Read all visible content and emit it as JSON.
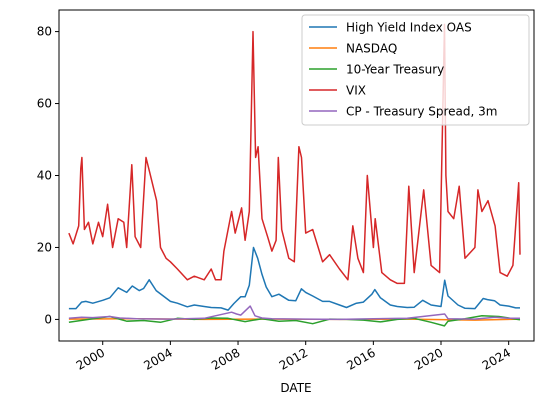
{
  "chart_data": {
    "type": "line",
    "xlabel": "DATE",
    "ylabel": "",
    "xlim": [
      "1997-06-01",
      "2025-07-01"
    ],
    "ylim": [
      -6,
      86
    ],
    "grid": false,
    "legend_placement": "top-right",
    "x_ticks": [
      "2000",
      "2004",
      "2008",
      "2012",
      "2016",
      "2020",
      "2024"
    ],
    "y_ticks": [
      0,
      20,
      40,
      60,
      80
    ],
    "series": [
      {
        "name": "High Yield Index OAS",
        "color": "#1f77b4",
        "x": [
          "1998-01-01",
          "1998-06-01",
          "1998-10-01",
          "1999-01-01",
          "1999-06-01",
          "2000-01-01",
          "2000-06-01",
          "2000-12-01",
          "2001-06-01",
          "2001-10-01",
          "2002-03-01",
          "2002-06-01",
          "2002-10-01",
          "2003-03-01",
          "2003-08-01",
          "2004-01-01",
          "2004-06-01",
          "2005-01-01",
          "2005-06-01",
          "2006-01-01",
          "2006-06-01",
          "2007-01-01",
          "2007-06-01",
          "2007-10-01",
          "2008-03-01",
          "2008-06-01",
          "2008-09-01",
          "2008-12-01",
          "2009-03-01",
          "2009-06-01",
          "2009-09-01",
          "2010-01-01",
          "2010-06-01",
          "2011-01-01",
          "2011-06-01",
          "2011-10-01",
          "2012-01-01",
          "2012-06-01",
          "2013-01-01",
          "2013-06-01",
          "2014-01-01",
          "2014-06-01",
          "2015-01-01",
          "2015-06-01",
          "2015-12-01",
          "2016-02-01",
          "2016-06-01",
          "2017-01-01",
          "2017-06-01",
          "2018-01-01",
          "2018-06-01",
          "2018-12-01",
          "2019-06-01",
          "2020-01-01",
          "2020-03-20",
          "2020-06-01",
          "2021-01-01",
          "2021-06-01",
          "2022-01-01",
          "2022-07-01",
          "2022-10-01",
          "2023-03-01",
          "2023-07-01",
          "2024-01-01",
          "2024-06-01",
          "2024-09-01"
        ],
        "values": [
          3.0,
          3.0,
          4.8,
          5.0,
          4.5,
          5.3,
          6.0,
          8.8,
          7.5,
          9.3,
          8.0,
          8.6,
          11.0,
          8.0,
          6.5,
          5.0,
          4.5,
          3.5,
          4.0,
          3.6,
          3.3,
          3.2,
          2.6,
          4.4,
          6.3,
          6.3,
          9.5,
          20.0,
          17.0,
          12.5,
          9.0,
          6.3,
          7.0,
          5.3,
          5.2,
          8.5,
          7.5,
          6.5,
          5.0,
          5.0,
          4.0,
          3.3,
          4.5,
          4.8,
          7.0,
          8.3,
          6.0,
          4.0,
          3.6,
          3.3,
          3.4,
          5.3,
          4.0,
          3.6,
          10.9,
          6.5,
          4.0,
          3.1,
          3.0,
          5.8,
          5.5,
          5.2,
          4.0,
          3.7,
          3.2,
          3.2
        ]
      },
      {
        "name": "NASDAQ",
        "color": "#ff7f0e",
        "x": [
          "1998-01-01",
          "2002-01-01",
          "2006-01-01",
          "2010-01-01",
          "2014-01-01",
          "2018-01-01",
          "2022-01-01",
          "2024-09-01"
        ],
        "values": [
          0.1,
          0.2,
          0.0,
          0.1,
          0.0,
          0.1,
          -0.2,
          0.1
        ]
      },
      {
        "name": "10-Year Treasury",
        "color": "#2ca02c",
        "x": [
          "1998-01-01",
          "1999-06-01",
          "2000-06-01",
          "2001-06-01",
          "2002-06-01",
          "2003-06-01",
          "2004-06-01",
          "2005-06-01",
          "2006-06-01",
          "2007-06-01",
          "2008-06-01",
          "2009-06-01",
          "2010-06-01",
          "2011-06-01",
          "2012-06-01",
          "2013-06-01",
          "2014-06-01",
          "2015-06-01",
          "2016-06-01",
          "2017-06-01",
          "2018-06-01",
          "2019-06-01",
          "2020-03-15",
          "2020-06-01",
          "2021-06-01",
          "2022-06-01",
          "2023-06-01",
          "2024-06-01",
          "2024-09-01"
        ],
        "values": [
          -0.8,
          0.2,
          0.8,
          -0.5,
          -0.3,
          -0.8,
          0.3,
          0.0,
          0.4,
          0.3,
          -0.6,
          0.2,
          -0.5,
          -0.3,
          -1.2,
          0.1,
          0.0,
          -0.2,
          -0.7,
          0.0,
          0.3,
          -0.8,
          -1.8,
          -0.5,
          0.2,
          1.0,
          0.8,
          0.1,
          -0.1
        ]
      },
      {
        "name": "VIX",
        "color": "#d62728",
        "x": [
          "1998-01-01",
          "1998-04-01",
          "1998-08-01",
          "1998-09-15",
          "1998-10-08",
          "1998-12-01",
          "1999-03-01",
          "1999-06-01",
          "1999-10-01",
          "2000-01-01",
          "2000-04-15",
          "2000-08-01",
          "2000-12-01",
          "2001-04-01",
          "2001-06-01",
          "2001-09-20",
          "2001-12-01",
          "2002-04-01",
          "2002-07-24",
          "2002-10-10",
          "2003-03-10",
          "2003-06-01",
          "2003-10-01",
          "2004-01-01",
          "2004-06-01",
          "2005-01-01",
          "2005-06-01",
          "2006-01-01",
          "2006-06-01",
          "2006-09-01",
          "2007-01-01",
          "2007-03-01",
          "2007-08-15",
          "2007-11-01",
          "2008-03-17",
          "2008-06-01",
          "2008-09-01",
          "2008-11-20",
          "2009-01-15",
          "2009-03-09",
          "2009-06-01",
          "2009-10-01",
          "2010-01-01",
          "2010-04-01",
          "2010-05-20",
          "2010-08-01",
          "2011-01-01",
          "2011-05-01",
          "2011-08-08",
          "2011-10-03",
          "2012-01-01",
          "2012-06-01",
          "2013-01-01",
          "2013-06-01",
          "2014-01-01",
          "2014-07-01",
          "2014-10-15",
          "2015-02-01",
          "2015-06-01",
          "2015-08-24",
          "2016-01-01",
          "2016-02-11",
          "2016-07-01",
          "2017-01-01",
          "2017-06-01",
          "2017-11-01",
          "2018-02-05",
          "2018-06-01",
          "2018-12-24",
          "2019-06-01",
          "2019-12-01",
          "2020-03-16",
          "2020-04-15",
          "2020-06-01",
          "2020-10-01",
          "2021-01-27",
          "2021-06-01",
          "2022-01-01",
          "2022-03-07",
          "2022-06-01",
          "2022-10-12",
          "2023-03-13",
          "2023-07-01",
          "2023-12-01",
          "2024-04-01",
          "2024-08-05",
          "2024-09-01"
        ],
        "values": [
          24,
          21,
          26,
          42,
          45,
          25,
          27,
          21,
          27,
          23,
          32,
          20,
          28,
          27,
          20,
          43,
          23,
          20,
          45,
          41,
          33,
          20,
          17,
          16,
          14,
          11,
          12,
          11,
          14,
          11,
          11,
          19,
          30,
          24,
          31,
          22,
          30,
          80,
          45,
          48,
          28,
          23,
          19,
          22,
          45,
          25,
          17,
          16,
          48,
          45,
          24,
          25,
          16,
          18,
          14,
          11,
          26,
          17,
          13,
          40,
          20,
          28,
          13,
          11,
          10,
          10,
          37,
          13,
          36,
          15,
          13,
          82,
          40,
          30,
          28,
          37,
          17,
          20,
          36,
          30,
          33,
          26,
          13,
          12,
          15,
          38,
          18
        ]
      },
      {
        "name": "CP - Treasury Spread, 3m",
        "color": "#9467bd",
        "x": [
          "1998-01-01",
          "1998-10-01",
          "1999-06-01",
          "2000-06-01",
          "2001-01-01",
          "2002-01-01",
          "2004-01-01",
          "2006-01-01",
          "2007-08-15",
          "2007-12-01",
          "2008-03-01",
          "2008-09-20",
          "2009-01-01",
          "2009-06-01",
          "2010-01-01",
          "2012-01-01",
          "2014-01-01",
          "2016-01-01",
          "2018-01-01",
          "2020-03-20",
          "2020-06-01",
          "2022-01-01",
          "2023-03-15",
          "2024-01-01",
          "2024-09-01"
        ],
        "values": [
          0.3,
          0.6,
          0.5,
          0.8,
          0.4,
          0.2,
          0.1,
          0.3,
          2.0,
          1.5,
          1.2,
          3.7,
          1.0,
          0.4,
          0.2,
          0.1,
          0.0,
          0.2,
          0.3,
          1.5,
          0.2,
          0.1,
          0.6,
          0.3,
          0.3
        ]
      }
    ]
  }
}
